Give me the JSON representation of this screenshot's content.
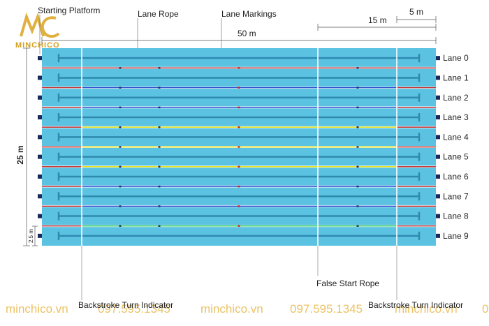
{
  "labels": {
    "starting_platform": "Starting Platform",
    "lane_rope": "Lane Rope",
    "lane_markings": "Lane Markings",
    "false_start_rope": "False Start Rope",
    "backstroke_left": "Backstroke Turn Indicator",
    "backstroke_right": "Backstroke Turn Indicator"
  },
  "dimensions": {
    "length": "50 m",
    "width": "25 m",
    "lane_width": "2.5 m",
    "false_start_distance": "15 m",
    "backstroke_distance": "5 m"
  },
  "lanes": [
    "Lane 0",
    "Lane 1",
    "Lane 2",
    "Lane 3",
    "Lane 4",
    "Lane 5",
    "Lane 6",
    "Lane 7",
    "Lane 8",
    "Lane 9"
  ],
  "lane_rope_colors": [
    "#ffffff",
    "#c8201c",
    "#1e3fc8",
    "#1e3fc8",
    "#e8e000",
    "#e8e000",
    "#e8e000",
    "#1e3fc8",
    "#1e3fc8",
    "#18c84a",
    "#ffffff"
  ],
  "colors": {
    "water": "#5bc2e2",
    "lane_marking": "#2f8ab0",
    "platform": "#1a2a5a",
    "watermark": "#e8b84a"
  },
  "brand": {
    "logo_text": "MINCHICO"
  },
  "watermark": {
    "items": [
      "minchico.vn",
      "097.595.1345",
      "minchico.vn",
      "097.595.1345",
      "minchico.vn",
      "0"
    ]
  }
}
